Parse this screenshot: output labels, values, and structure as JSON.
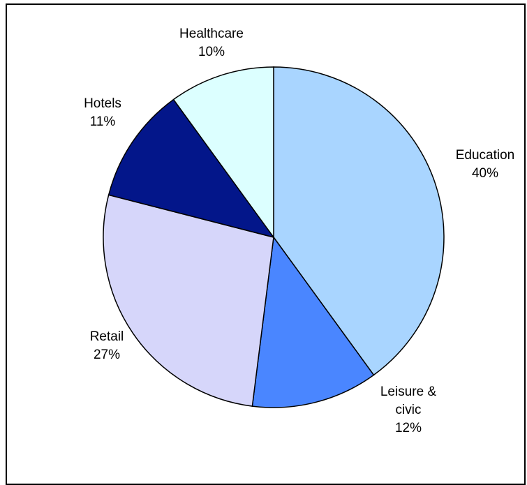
{
  "chart_data": {
    "type": "pie",
    "title": "",
    "slices": [
      {
        "label": [
          "Education"
        ],
        "percent_label": "40%",
        "value": 40,
        "color": "#a9d5ff"
      },
      {
        "label": [
          "Leisure &",
          "civic"
        ],
        "percent_label": "12%",
        "value": 12,
        "color": "#4a86ff"
      },
      {
        "label": [
          "Retail"
        ],
        "percent_label": "27%",
        "value": 27,
        "color": "#d6d6fa"
      },
      {
        "label": [
          "Hotels"
        ],
        "percent_label": "11%",
        "value": 11,
        "color": "#03168a"
      },
      {
        "label": [
          "Healthcare"
        ],
        "percent_label": "10%",
        "value": 10,
        "color": "#dcffff"
      }
    ]
  }
}
